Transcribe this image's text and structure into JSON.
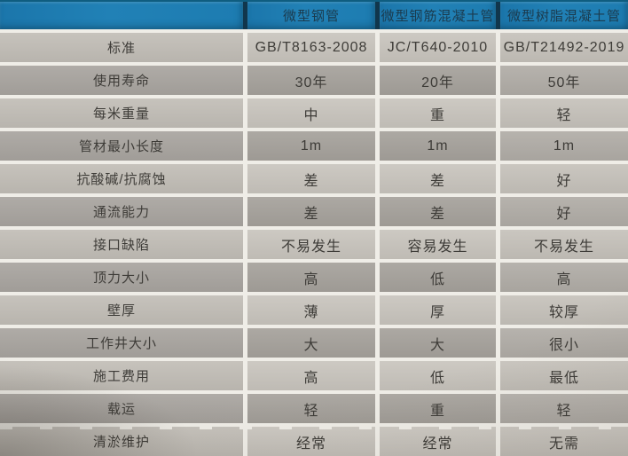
{
  "table": {
    "columns": [
      "",
      "微型钢管",
      "微型钢筋混凝土管",
      "微型树脂混凝土管"
    ],
    "rows": [
      {
        "label": "标准",
        "values": [
          "GB/T8163-2008",
          "JC/T640-2010",
          "GB/T21492-2019"
        ]
      },
      {
        "label": "使用寿命",
        "values": [
          "30年",
          "20年",
          "50年"
        ]
      },
      {
        "label": "每米重量",
        "values": [
          "中",
          "重",
          "轻"
        ]
      },
      {
        "label": "管材最小长度",
        "values": [
          "1m",
          "1m",
          "1m"
        ]
      },
      {
        "label": "抗酸碱/抗腐蚀",
        "values": [
          "差",
          "差",
          "好"
        ]
      },
      {
        "label": "通流能力",
        "values": [
          "差",
          "差",
          "好"
        ]
      },
      {
        "label": "接口缺陷",
        "values": [
          "不易发生",
          "容易发生",
          "不易发生"
        ]
      },
      {
        "label": "顶力大小",
        "values": [
          "高",
          "低",
          "高"
        ]
      },
      {
        "label": "壁厚",
        "values": [
          "薄",
          "厚",
          "较厚"
        ]
      },
      {
        "label": "工作井大小",
        "values": [
          "大",
          "大",
          "很小"
        ]
      },
      {
        "label": "施工费用",
        "values": [
          "高",
          "低",
          "最低"
        ]
      },
      {
        "label": "载运",
        "values": [
          "轻",
          "重",
          "轻"
        ]
      },
      {
        "label": "清淤维护",
        "values": [
          "经常",
          "经常",
          "无需"
        ]
      }
    ]
  },
  "colors": {
    "header_blue": "#1e7bb0",
    "header_text": "#1b3b4e",
    "row_light": "#c9c5be",
    "row_dark": "#a6a29c",
    "gap_white": "#efede7",
    "body_text": "#3e3c38"
  }
}
